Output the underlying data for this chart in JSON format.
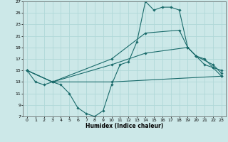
{
  "xlabel": "Humidex (Indice chaleur)",
  "xlim": [
    -0.5,
    23.5
  ],
  "ylim": [
    7,
    27
  ],
  "xticks": [
    0,
    1,
    2,
    3,
    4,
    5,
    6,
    7,
    8,
    9,
    10,
    11,
    12,
    13,
    14,
    15,
    16,
    17,
    18,
    19,
    20,
    21,
    22,
    23
  ],
  "yticks": [
    7,
    9,
    11,
    13,
    15,
    17,
    19,
    21,
    23,
    25,
    27
  ],
  "bg_color": "#cce8e8",
  "grid_color": "#b0d8d8",
  "line_color": "#1a6b6b",
  "lines": [
    {
      "x": [
        0,
        1,
        2,
        3,
        4,
        5,
        6,
        7,
        8,
        9,
        10,
        11,
        12,
        13,
        14,
        15,
        16,
        17,
        18,
        19,
        20,
        21,
        22,
        23
      ],
      "y": [
        15,
        13,
        12.5,
        13,
        12.5,
        11,
        8.5,
        7.5,
        7,
        8,
        12.5,
        16,
        16.5,
        20,
        27,
        25.5,
        26,
        26,
        25.5,
        19,
        17.5,
        16,
        15.5,
        14
      ]
    },
    {
      "x": [
        0,
        3,
        10,
        14,
        18,
        19,
        20,
        21,
        22,
        23
      ],
      "y": [
        15,
        13,
        17,
        21.5,
        22,
        19,
        17.5,
        17,
        15.5,
        15
      ]
    },
    {
      "x": [
        0,
        3,
        10,
        14,
        19,
        20,
        22,
        23
      ],
      "y": [
        15,
        13,
        16,
        18,
        19,
        17.5,
        16,
        14.5
      ]
    },
    {
      "x": [
        0,
        3,
        10,
        23
      ],
      "y": [
        15,
        13,
        13,
        14
      ]
    }
  ]
}
